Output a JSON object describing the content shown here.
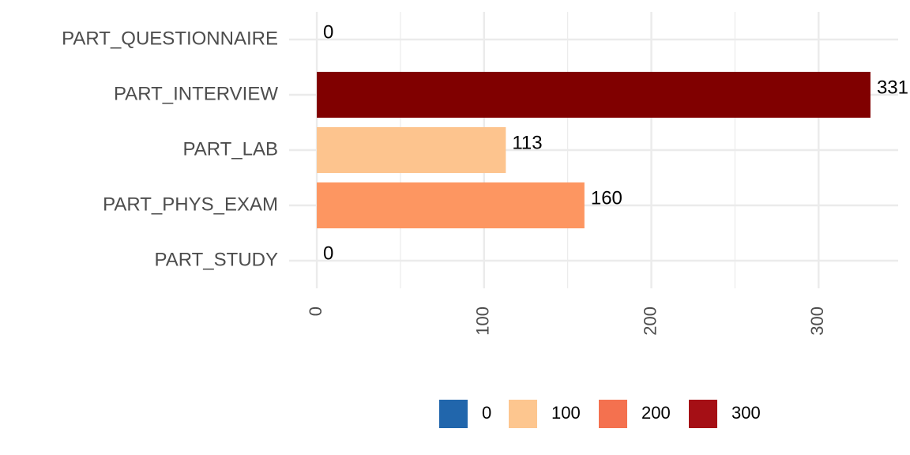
{
  "chart_data": {
    "type": "barh",
    "categories": [
      "PART_QUESTIONNAIRE",
      "PART_INTERVIEW",
      "PART_LAB",
      "PART_PHYS_EXAM",
      "PART_STUDY"
    ],
    "values": [
      0,
      331,
      113,
      160,
      0
    ],
    "colors": [
      "#2166ac",
      "#800000",
      "#fdc48e",
      "#fd9661",
      "#2166ac"
    ],
    "xlim": [
      -16.55,
      347.55
    ],
    "xticks": [
      0,
      100,
      200,
      300
    ],
    "x_minor_ticks": [
      50,
      150,
      250
    ],
    "grid": true,
    "legend": {
      "position": "bottom",
      "labels": [
        0,
        100,
        200,
        300
      ],
      "colors": [
        "#2166ac",
        "#fdc68f",
        "#f4714f",
        "#a50f15"
      ]
    }
  }
}
